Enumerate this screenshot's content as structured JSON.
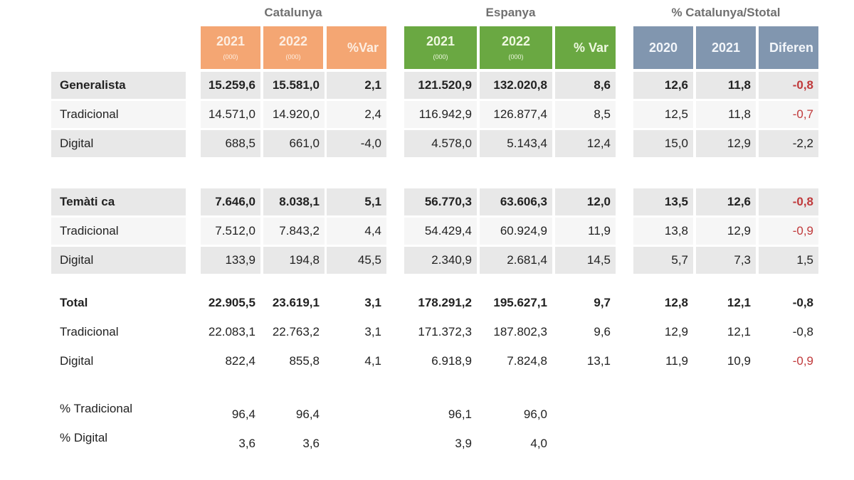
{
  "groups": {
    "catalunya": {
      "title": "Catalunya",
      "headers": [
        {
          "year": "2021",
          "unit": "(000)"
        },
        {
          "year": "2022",
          "unit": "(000)"
        },
        {
          "year": "%Var"
        }
      ],
      "color": "#f4a673"
    },
    "espanya": {
      "title": "Espanya",
      "headers": [
        {
          "year": "2021",
          "unit": "(000)"
        },
        {
          "year": "2022",
          "unit": "(000)"
        },
        {
          "year": "% Var"
        }
      ],
      "color": "#6aa842"
    },
    "share": {
      "title": "% Catalunya/Stotal",
      "headers": [
        {
          "year": "2020"
        },
        {
          "year": "2021"
        },
        {
          "year": "Diferen"
        }
      ],
      "color": "#8196af"
    }
  },
  "rows": [
    {
      "label": "Generalista",
      "cat": [
        "15.259,6",
        "15.581,0",
        "2,1"
      ],
      "esp": [
        "121.520,9",
        "132.020,8",
        "8,6"
      ],
      "share": [
        "12,6",
        "11,8",
        "-0,8"
      ]
    },
    {
      "label": "Tradicional",
      "cat": [
        "14.571,0",
        "14.920,0",
        "2,4"
      ],
      "esp": [
        "116.942,9",
        "126.877,4",
        "8,5"
      ],
      "share": [
        "12,5",
        "11,8",
        "-0,7"
      ]
    },
    {
      "label": "Digital",
      "cat": [
        "688,5",
        "661,0",
        "-4,0"
      ],
      "esp": [
        "4.578,0",
        "5.143,4",
        "12,4"
      ],
      "share": [
        "15,0",
        "12,9",
        "-2,2"
      ]
    },
    {
      "label": "Temàti  ca",
      "cat": [
        "7.646,0",
        "8.038,1",
        "5,1"
      ],
      "esp": [
        "56.770,3",
        "63.606,3",
        "12,0"
      ],
      "share": [
        "13,5",
        "12,6",
        "-0,8"
      ]
    },
    {
      "label": "Tradicional",
      "cat": [
        "7.512,0",
        "7.843,2",
        "4,4"
      ],
      "esp": [
        "54.429,4",
        "60.924,9",
        "11,9"
      ],
      "share": [
        "13,8",
        "12,9",
        "-0,9"
      ]
    },
    {
      "label": "Digital",
      "cat": [
        "133,9",
        "194,8",
        "45,5"
      ],
      "esp": [
        "2.340,9",
        "2.681,4",
        "14,5"
      ],
      "share": [
        "5,7",
        "7,3",
        "1,5"
      ]
    },
    {
      "label": "Total",
      "cat": [
        "22.905,5",
        "23.619,1",
        "3,1"
      ],
      "esp": [
        "178.291,2",
        "195.627,1",
        "9,7"
      ],
      "share": [
        "12,8",
        "12,1",
        "-0,8"
      ]
    },
    {
      "label": "Tradicional",
      "cat": [
        "22.083,1",
        "22.763,2",
        "3,1"
      ],
      "esp": [
        "171.372,3",
        "187.802,3",
        "9,6"
      ],
      "share": [
        "12,9",
        "12,1",
        "-0,8"
      ]
    },
    {
      "label": "Digital",
      "cat": [
        "822,4",
        "855,8",
        "4,1"
      ],
      "esp": [
        "6.918,9",
        "7.824,8",
        "13,1"
      ],
      "share": [
        "11,9",
        "10,9",
        "-0,9"
      ]
    }
  ],
  "pct_rows": [
    {
      "label": "% Tradicional",
      "cat": [
        "96,4",
        "96,4"
      ],
      "esp": [
        "96,1",
        "96,0"
      ]
    },
    {
      "label": "% Digital",
      "cat": [
        "3,6",
        "3,6"
      ],
      "esp": [
        "3,9",
        "4,0"
      ]
    }
  ],
  "colors": {
    "negative": "#c0393b",
    "row_shade": "#e8e8e8",
    "row_light": "#f6f6f6",
    "title_gray": "#707070"
  }
}
